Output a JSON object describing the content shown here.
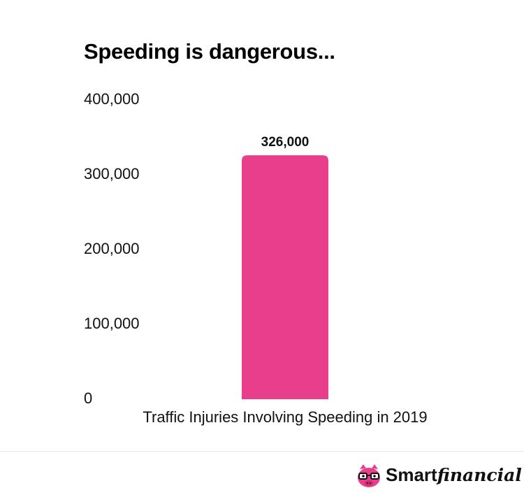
{
  "chart_data": {
    "type": "bar",
    "title": "Speeding is dangerous...",
    "categories": [
      "Traffic Injuries Involving Speeding in 2019"
    ],
    "values": [
      326000
    ],
    "value_labels": [
      "326,000"
    ],
    "ylim": [
      0,
      400000
    ],
    "yticks": [
      0,
      100000,
      200000,
      300000,
      400000
    ],
    "ytick_labels": [
      "0",
      "100,000",
      "200,000",
      "300,000",
      "400,000"
    ],
    "xlabel": "",
    "ylabel": "",
    "grid": false,
    "bar_color": "#e83e8c"
  },
  "brand": {
    "name_bold": "Smart",
    "name_script": "financial",
    "logo_icon": "pig-with-glasses-icon",
    "logo_color": "#e83e8c"
  }
}
